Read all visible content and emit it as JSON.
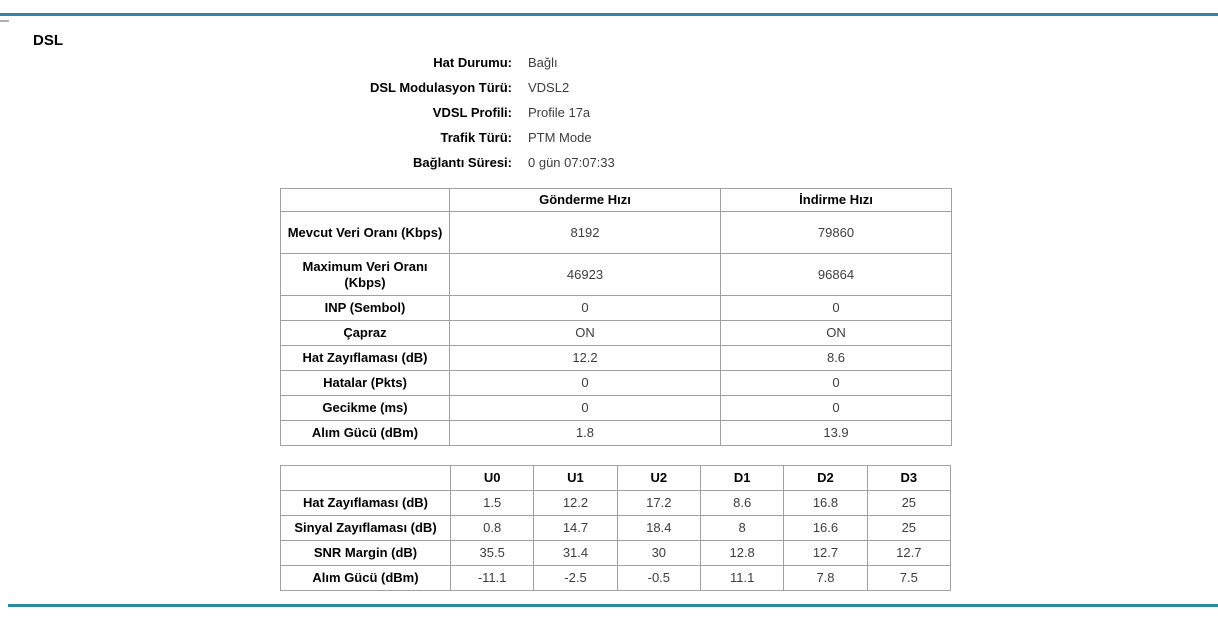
{
  "colors": {
    "accent": "#2c8ba0",
    "table_border": "#a0a0a0",
    "value_text": "#3d3d3d"
  },
  "header": {
    "title": "DSL"
  },
  "info": {
    "rows": [
      {
        "label": "Hat Durumu:",
        "value": "Bağlı"
      },
      {
        "label": "DSL Modulasyon Türü:",
        "value": "VDSL2"
      },
      {
        "label": "VDSL Profili:",
        "value": "Profile 17a"
      },
      {
        "label": "Trafik Türü:",
        "value": "PTM Mode"
      },
      {
        "label": "Bağlantı Süresi:",
        "value": "0 gün 07:07:33"
      }
    ]
  },
  "rate_table": {
    "columns": [
      "",
      "Gönderme Hızı",
      "İndirme Hızı"
    ],
    "rows": [
      {
        "label": "Mevcut Veri Oranı (Kbps)",
        "values": [
          "8192",
          "79860"
        ]
      },
      {
        "label": "Maximum Veri Oranı (Kbps)",
        "values": [
          "46923",
          "96864"
        ]
      },
      {
        "label": "INP (Sembol)",
        "values": [
          "0",
          "0"
        ]
      },
      {
        "label": "Çapraz",
        "values": [
          "ON",
          "ON"
        ]
      },
      {
        "label": "Hat Zayıflaması (dB)",
        "values": [
          "12.2",
          "8.6"
        ]
      },
      {
        "label": "Hatalar (Pkts)",
        "values": [
          "0",
          "0"
        ]
      },
      {
        "label": "Gecikme (ms)",
        "values": [
          "0",
          "0"
        ]
      },
      {
        "label": "Alım Gücü (dBm)",
        "values": [
          "1.8",
          "13.9"
        ]
      }
    ]
  },
  "band_table": {
    "columns": [
      "",
      "U0",
      "U1",
      "U2",
      "D1",
      "D2",
      "D3"
    ],
    "rows": [
      {
        "label": "Hat Zayıflaması (dB)",
        "values": [
          "1.5",
          "12.2",
          "17.2",
          "8.6",
          "16.8",
          "25"
        ]
      },
      {
        "label": "Sinyal Zayıflaması (dB)",
        "values": [
          "0.8",
          "14.7",
          "18.4",
          "8",
          "16.6",
          "25"
        ]
      },
      {
        "label": "SNR Margin (dB)",
        "values": [
          "35.5",
          "31.4",
          "30",
          "12.8",
          "12.7",
          "12.7"
        ]
      },
      {
        "label": "Alım Gücü (dBm)",
        "values": [
          "-11.1",
          "-2.5",
          "-0.5",
          "11.1",
          "7.8",
          "7.5"
        ]
      }
    ]
  }
}
